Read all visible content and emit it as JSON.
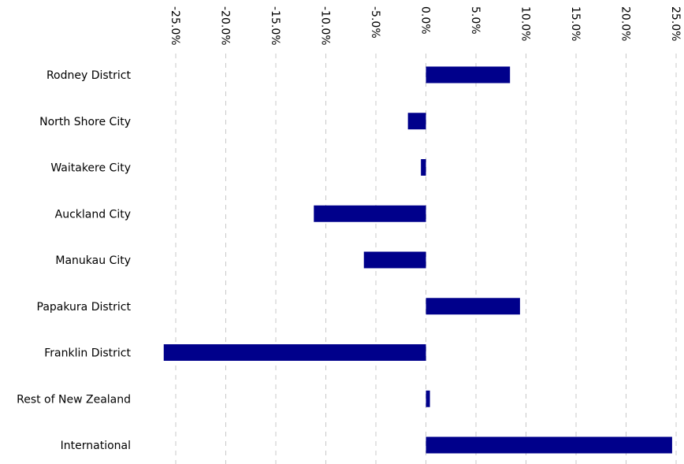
{
  "chart_data": {
    "type": "bar",
    "orientation": "horizontal",
    "categories": [
      "Rodney District",
      "North Shore City",
      "Waitakere City",
      "Auckland City",
      "Manukau City",
      "Papakura District",
      "Franklin District",
      "Rest of New Zealand",
      "International"
    ],
    "values": [
      8.4,
      -1.8,
      -0.5,
      -11.2,
      -6.2,
      9.4,
      -26.2,
      0.4,
      24.6
    ],
    "x_ticks": [
      -25,
      -20,
      -15,
      -10,
      -5,
      0,
      5,
      10,
      15,
      20,
      25
    ],
    "x_tick_labels": [
      "-25.0%",
      "-20.0%",
      "-15.0%",
      "-10.0%",
      "-5.0%",
      "0.0%",
      "5.0%",
      "10.0%",
      "15.0%",
      "20.0%",
      "25.0%"
    ],
    "xlim": [
      -26.2,
      25.2
    ],
    "grid": "vertical dashed",
    "bar_color": "#00008B",
    "grid_color": "#c8c8c8"
  }
}
